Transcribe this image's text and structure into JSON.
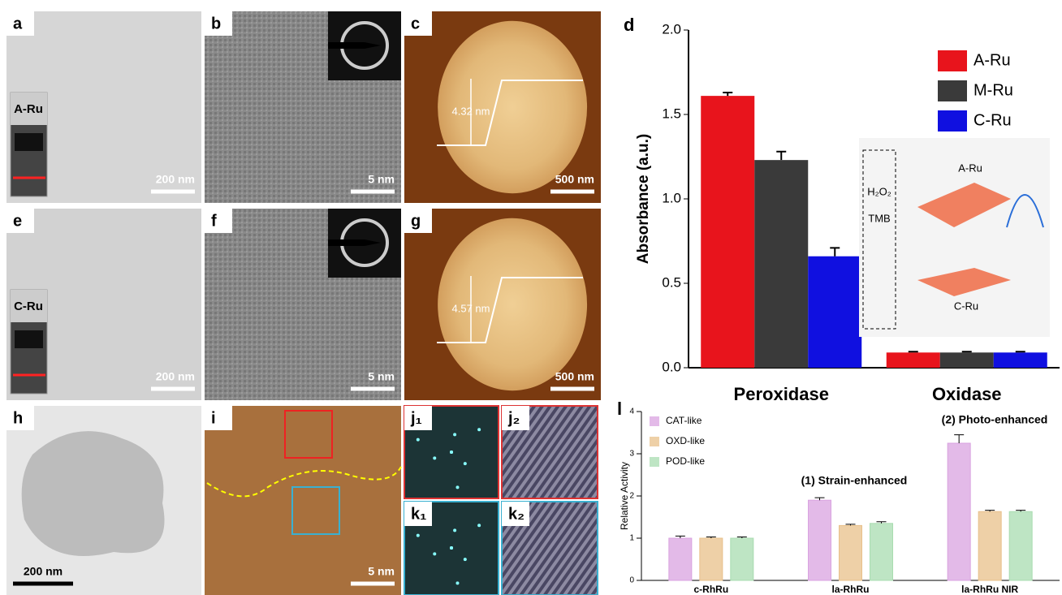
{
  "panels": [
    {
      "label": "a",
      "scale_bar": "200 nm",
      "tag": "A-Ru"
    },
    {
      "label": "b",
      "scale_bar": "5 nm"
    },
    {
      "label": "c",
      "scale_bar": "500 nm",
      "height": "4.32 nm"
    },
    {
      "label": "e",
      "scale_bar": "200 nm",
      "tag": "C-Ru"
    },
    {
      "label": "f",
      "scale_bar": "5 nm"
    },
    {
      "label": "g",
      "scale_bar": "500 nm",
      "height": "4.57 nm"
    },
    {
      "label": "h",
      "scale_bar": "200 nm"
    },
    {
      "label": "i",
      "scale_bar": "5 nm"
    },
    {
      "label": "j₁"
    },
    {
      "label": "j₂"
    },
    {
      "label": "k₁"
    },
    {
      "label": "k₂"
    }
  ],
  "chart_data": [
    {
      "type": "bar",
      "label": "d",
      "ylabel": "Absorbance (a.u.)",
      "categories": [
        "Peroxidase",
        "Oxidase"
      ],
      "series": [
        {
          "name": "A-Ru",
          "color": "#e8141c",
          "values": [
            1.61,
            0.09
          ],
          "errors": [
            0.02,
            0.005
          ]
        },
        {
          "name": "M-Ru",
          "color": "#3a3a3a",
          "values": [
            1.23,
            0.09
          ],
          "errors": [
            0.05,
            0.005
          ]
        },
        {
          "name": "C-Ru",
          "color": "#1010e0",
          "values": [
            0.66,
            0.09
          ],
          "errors": [
            0.05,
            0.005
          ]
        }
      ],
      "ylim": [
        0,
        2.0
      ],
      "yticks": [
        {
          "value": 0,
          "label": "0.0"
        },
        0.5,
        {
          "value": 1,
          "label": "1.0"
        },
        1.5,
        {
          "value": 2,
          "label": "2.0"
        }
      ],
      "inset_labels": [
        "A-Ru",
        "H₂O₂",
        "TMB",
        "C-Ru"
      ]
    },
    {
      "type": "bar",
      "label": "l",
      "ylabel": "Relative Activity",
      "categories": [
        "c-RhRu",
        "la-RhRu",
        "la-RhRu NIR"
      ],
      "series": [
        {
          "name": "CAT-like",
          "color": "#d9a3e0",
          "values": [
            1.0,
            1.9,
            3.25
          ],
          "errors": [
            0.05,
            0.06,
            0.2
          ]
        },
        {
          "name": "OXD-like",
          "color": "#e8c08a",
          "values": [
            1.0,
            1.3,
            1.63
          ],
          "errors": [
            0.03,
            0.03,
            0.03
          ]
        },
        {
          "name": "POD-like",
          "color": "#a8dcb0",
          "values": [
            1.0,
            1.35,
            1.63
          ],
          "errors": [
            0.03,
            0.04,
            0.03
          ]
        }
      ],
      "ylim": [
        0,
        4
      ],
      "yticks": [
        0,
        1,
        2,
        3,
        4
      ],
      "annotations": [
        "(1) Strain-enhanced",
        "(2) Photo-enhanced"
      ]
    }
  ]
}
